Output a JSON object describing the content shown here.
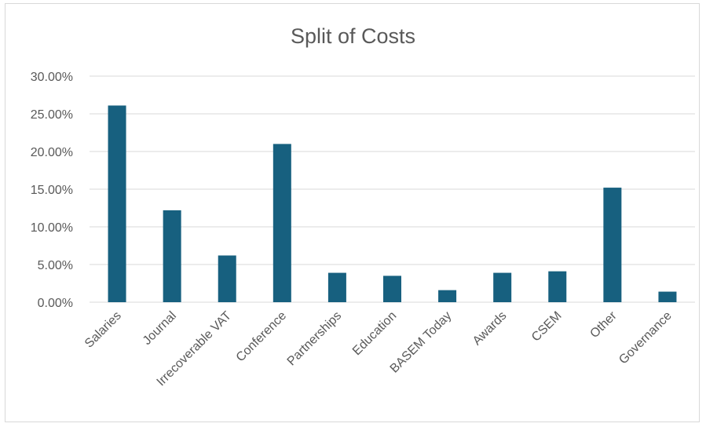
{
  "chart_data": {
    "type": "bar",
    "title": "Split of Costs",
    "xlabel": "",
    "ylabel": "",
    "categories": [
      "Salaries",
      "Journal",
      "Irrecoverable VAT",
      "Conference",
      "Partnerships",
      "Education",
      "BASEM Today",
      "Awards",
      "CSEM",
      "Other",
      "Governance"
    ],
    "values": [
      26.1,
      12.2,
      6.2,
      21.0,
      3.9,
      3.5,
      1.6,
      3.9,
      4.1,
      15.2,
      1.4
    ],
    "y_ticks": [
      "0.00%",
      "5.00%",
      "10.00%",
      "15.00%",
      "20.00%",
      "25.00%",
      "30.00%"
    ],
    "ylim": [
      0,
      30
    ],
    "grid": true,
    "legend": "none",
    "colors": {
      "bar": "#17607f",
      "grid": "#d9d9d9",
      "text": "#595959"
    }
  }
}
